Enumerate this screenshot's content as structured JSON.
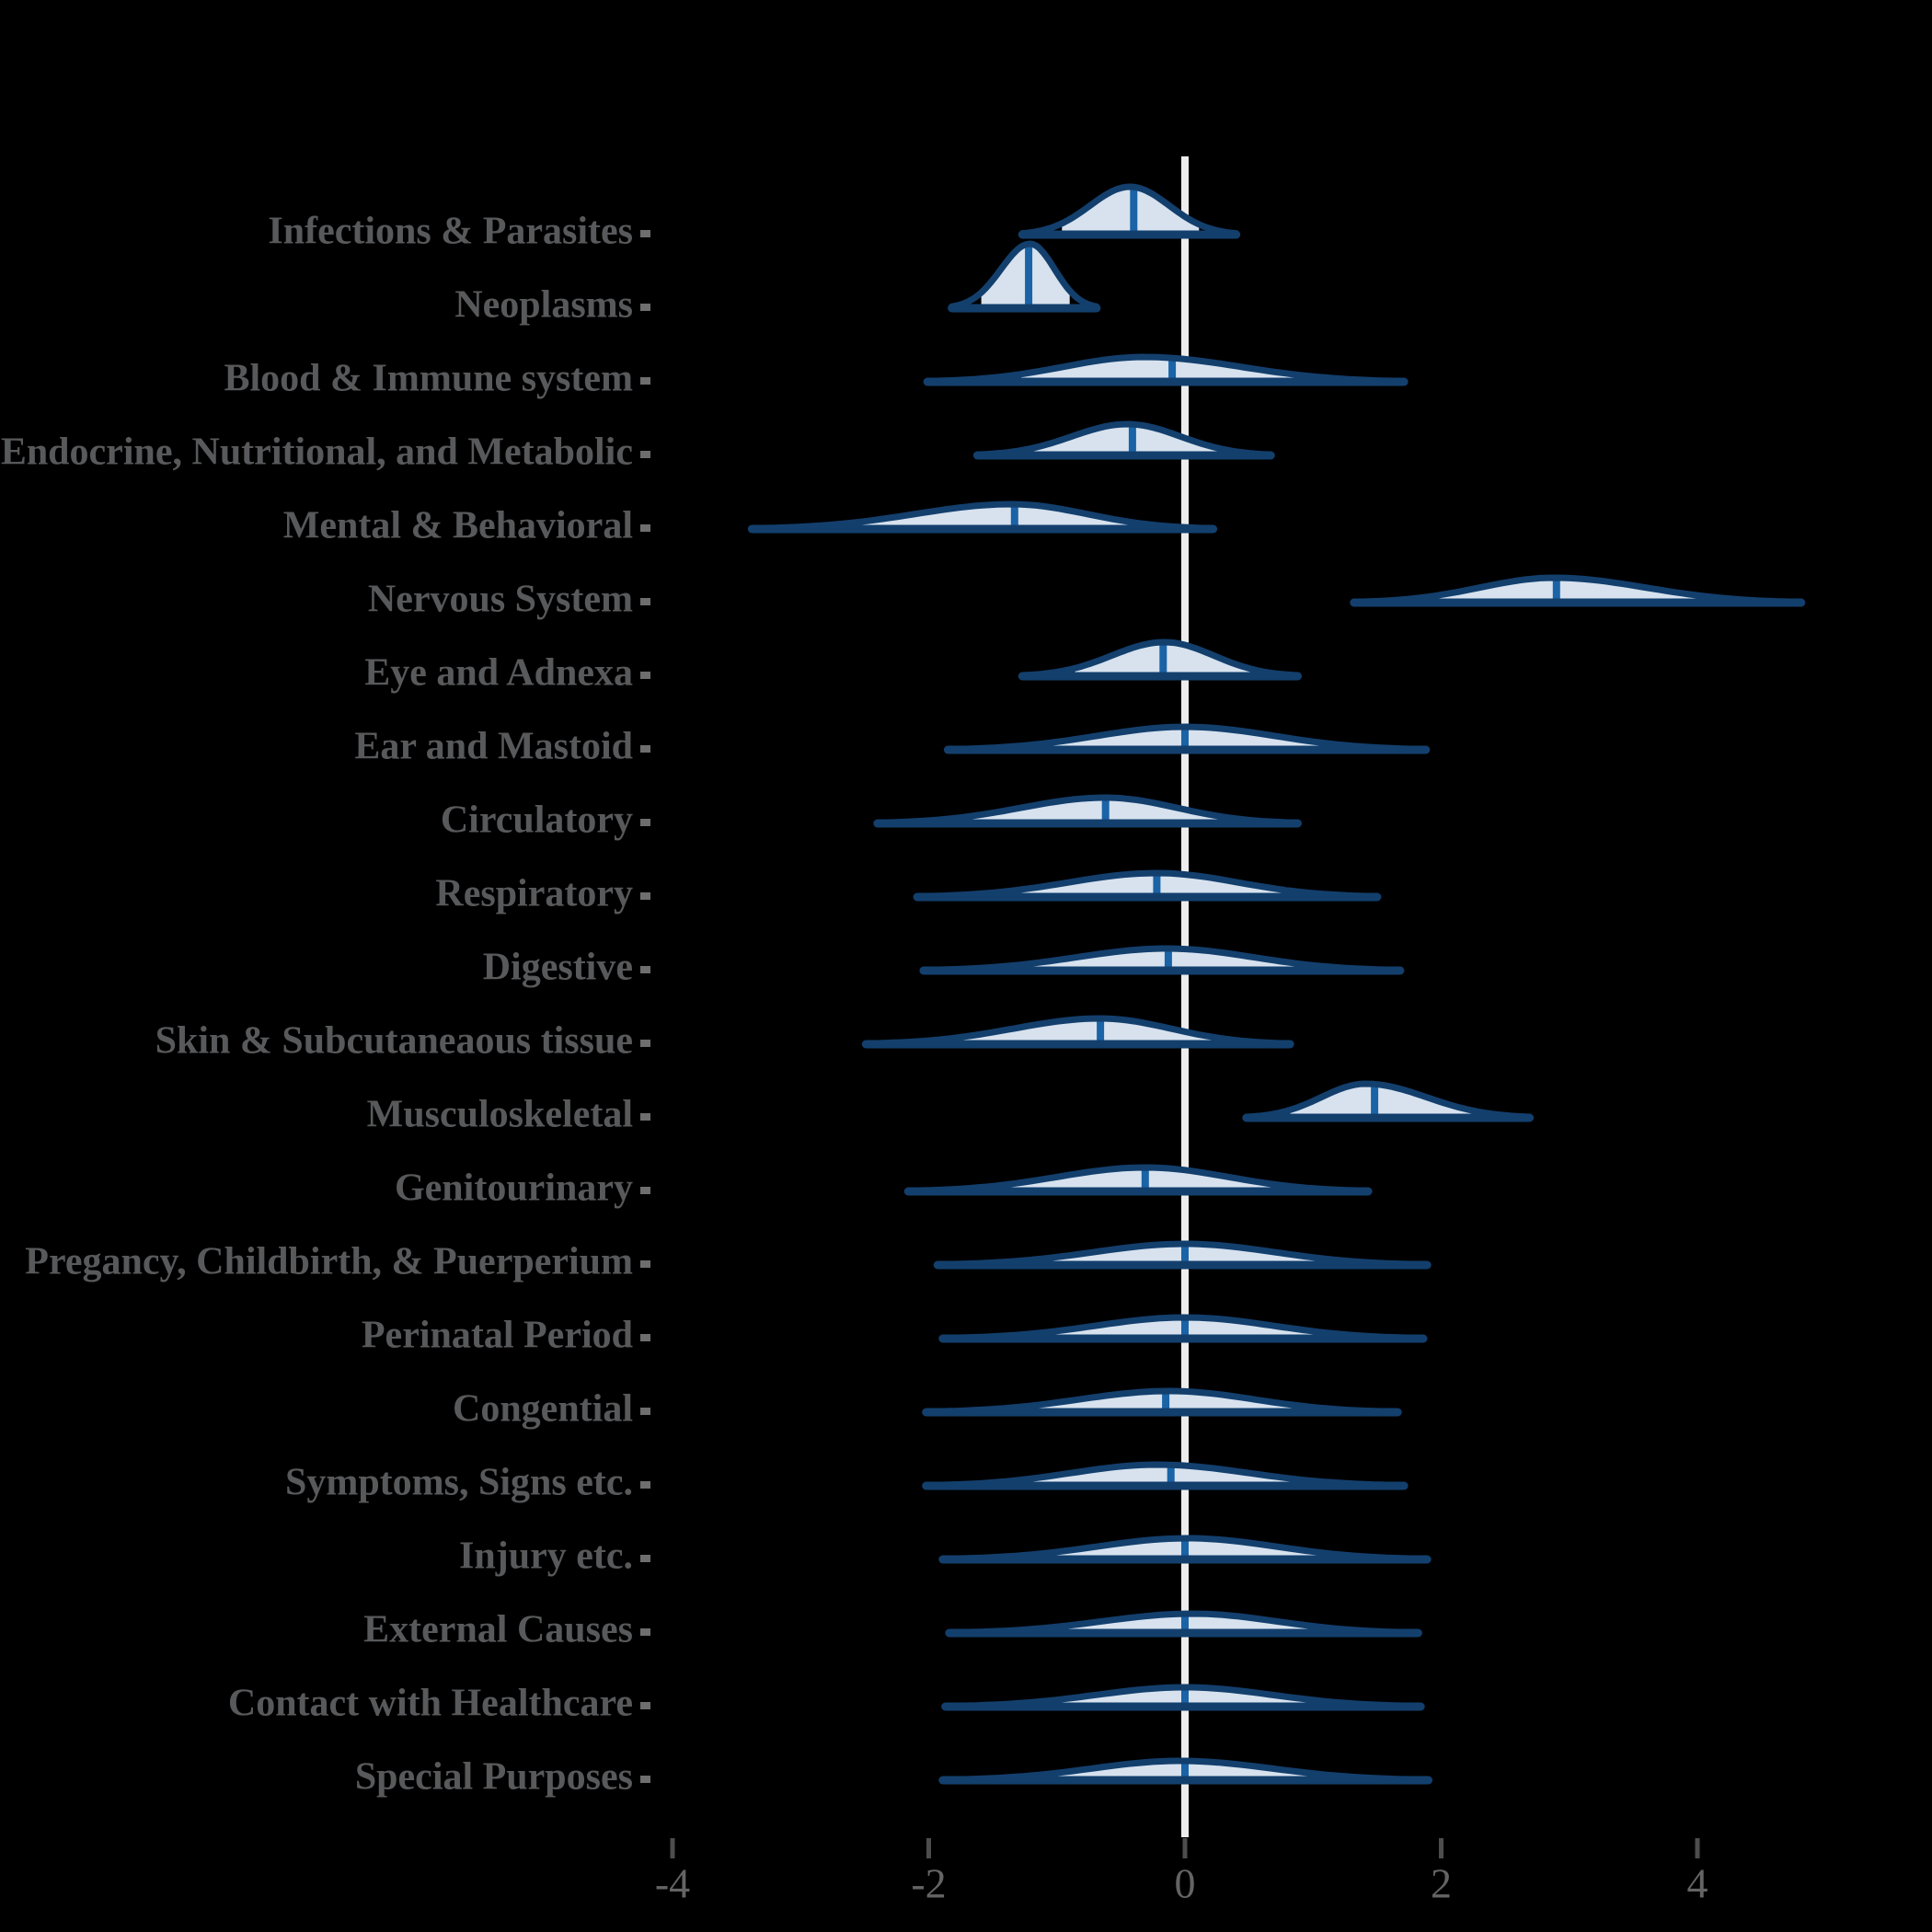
{
  "chart_data": {
    "type": "area",
    "variant": "ridgeline-density-halfeye",
    "title": "",
    "xlabel": "",
    "ylabel": "",
    "x_axis": {
      "ticks": [
        -4,
        -2,
        0,
        2,
        4
      ],
      "xlim": [
        -4.9,
        5.8
      ]
    },
    "reference_line_x": 0,
    "legend": "none",
    "grid": "off",
    "categories": [
      {
        "label": "Infections & Parasites",
        "min": -1.27,
        "max": 0.4,
        "mode": -0.43,
        "median": -0.4,
        "q_lo": -0.96,
        "q_hi": 0.11,
        "peak": 52
      },
      {
        "label": "Neoplasms",
        "min": -1.82,
        "max": -0.69,
        "mode": -1.21,
        "median": -1.22,
        "q_lo": -1.59,
        "q_hi": -0.9,
        "peak": 70
      },
      {
        "label": "Blood & Immune system",
        "min": -2.01,
        "max": 1.71,
        "mode": -0.32,
        "median": -0.1,
        "q_lo": -1.28,
        "q_hi": 1.03,
        "peak": 27
      },
      {
        "label": "Endocrine, Nutritional, and Metabolic",
        "min": -1.62,
        "max": 0.67,
        "mode": -0.45,
        "median": -0.41,
        "q_lo": -1.19,
        "q_hi": 0.28,
        "peak": 34
      },
      {
        "label": "Mental & Behavioral",
        "min": -3.38,
        "max": 0.22,
        "mode": -1.35,
        "median": -1.33,
        "q_lo": -2.61,
        "q_hi": -0.33,
        "peak": 27
      },
      {
        "label": "Nervous System",
        "min": 1.32,
        "max": 4.81,
        "mode": 2.88,
        "median": 2.9,
        "q_lo": 1.91,
        "q_hi": 4.1,
        "peak": 27
      },
      {
        "label": "Eye and Adnexa",
        "min": -1.27,
        "max": 0.88,
        "mode": -0.16,
        "median": -0.17,
        "q_lo": -0.86,
        "q_hi": 0.52,
        "peak": 37
      },
      {
        "label": "Ear and Mastoid",
        "min": -1.85,
        "max": 1.88,
        "mode": 0.0,
        "median": 0.0,
        "q_lo": -1.16,
        "q_hi": 1.15,
        "peak": 25
      },
      {
        "label": "Circulatory",
        "min": -2.4,
        "max": 0.88,
        "mode": -0.62,
        "median": -0.62,
        "q_lo": -1.71,
        "q_hi": 0.37,
        "peak": 28
      },
      {
        "label": "Respiratory",
        "min": -2.09,
        "max": 1.5,
        "mode": -0.22,
        "median": -0.22,
        "q_lo": -1.39,
        "q_hi": 0.88,
        "peak": 26
      },
      {
        "label": "Digestive",
        "min": -2.04,
        "max": 1.68,
        "mode": -0.14,
        "median": -0.13,
        "q_lo": -1.34,
        "q_hi": 1.0,
        "peak": 24
      },
      {
        "label": "Skin & Subcutaneaous tissue",
        "min": -2.49,
        "max": 0.82,
        "mode": -0.66,
        "median": -0.66,
        "q_lo": -1.75,
        "q_hi": 0.3,
        "peak": 28
      },
      {
        "label": "Musculoskeletal",
        "min": 0.48,
        "max": 2.69,
        "mode": 1.41,
        "median": 1.48,
        "q_lo": 0.82,
        "q_hi": 2.28,
        "peak": 37
      },
      {
        "label": "Genitourinary",
        "min": -2.16,
        "max": 1.43,
        "mode": -0.31,
        "median": -0.31,
        "q_lo": -1.42,
        "q_hi": 0.78,
        "peak": 26
      },
      {
        "label": "Pregancy, Childbirth, & Puerperium",
        "min": -1.93,
        "max": 1.89,
        "mode": 0.0,
        "median": 0.0,
        "q_lo": -1.18,
        "q_hi": 1.2,
        "peak": 23
      },
      {
        "label": "Perinatal Period",
        "min": -1.89,
        "max": 1.86,
        "mode": 0.0,
        "median": 0.0,
        "q_lo": -1.16,
        "q_hi": 1.11,
        "peak": 23
      },
      {
        "label": "Congential",
        "min": -2.02,
        "max": 1.66,
        "mode": -0.12,
        "median": -0.15,
        "q_lo": -1.3,
        "q_hi": 1.0,
        "peak": 23
      },
      {
        "label": "Symptoms, Signs etc.",
        "min": -2.02,
        "max": 1.71,
        "mode": -0.22,
        "median": -0.11,
        "q_lo": -1.27,
        "q_hi": 1.05,
        "peak": 23
      },
      {
        "label": "Injury etc.",
        "min": -1.89,
        "max": 1.89,
        "mode": 0.02,
        "median": 0.0,
        "q_lo": -1.16,
        "q_hi": 1.16,
        "peak": 23
      },
      {
        "label": "External Causes",
        "min": -1.84,
        "max": 1.82,
        "mode": 0.06,
        "median": 0.0,
        "q_lo": -1.14,
        "q_hi": 1.11,
        "peak": 21
      },
      {
        "label": "Contact with Healthcare",
        "min": -1.87,
        "max": 1.84,
        "mode": 0.0,
        "median": 0.0,
        "q_lo": -1.16,
        "q_hi": 1.16,
        "peak": 21
      },
      {
        "label": "Special Purposes",
        "min": -1.89,
        "max": 1.9,
        "mode": -0.04,
        "median": 0.0,
        "q_lo": -1.16,
        "q_hi": 1.16,
        "peak": 21
      }
    ]
  },
  "colors": {
    "background": "#000000",
    "violin_outline": "#133f6d",
    "violin_fill": "#d7e2ee",
    "median_bar": "#1a63a6",
    "reference_line": "#ededed",
    "label_text": "#58595b",
    "axis_text": "#646464",
    "axis_tick": "#4d4d4d",
    "row_tick": "#6e6e6e"
  },
  "axis_tick_labels": [
    "-4",
    "-2",
    "0",
    "2",
    "4"
  ]
}
